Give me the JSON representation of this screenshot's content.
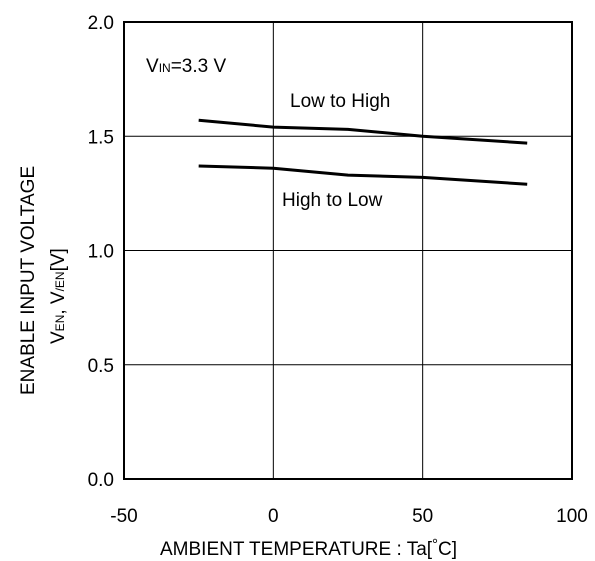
{
  "chart_data": {
    "type": "line",
    "xlabel_main": "AMBIENT TEMPERATURE : Ta[",
    "xlabel_unit_deg": "°",
    "xlabel_unit_c": "C",
    "xlabel_close": "]",
    "ylabel_line1": "ENABLE INPUT VOLTAGE",
    "ylabel_line2": {
      "v1": "V",
      "sub1": "EN",
      "sep": ", V",
      "sub2": "/EN",
      "unit": "[V]"
    },
    "xlim": [
      -50,
      100
    ],
    "ylim": [
      0.0,
      2.0
    ],
    "xticks": [
      "-50",
      "0",
      "50",
      "100"
    ],
    "yticks": [
      "0.0",
      "0.5",
      "1.0",
      "1.5",
      "2.0"
    ],
    "xtick_values": [
      -50,
      0,
      50,
      100
    ],
    "ytick_values": [
      0.0,
      0.5,
      1.0,
      1.5,
      2.0
    ],
    "grid": true,
    "condition": {
      "v": "V",
      "sub": "IN",
      "rest": "=3.3 V"
    },
    "series": [
      {
        "name": "Low to High",
        "x": [
          -25,
          0,
          25,
          50,
          85
        ],
        "y": [
          1.57,
          1.54,
          1.53,
          1.5,
          1.47
        ]
      },
      {
        "name": "High to Low",
        "x": [
          -25,
          0,
          25,
          50,
          85
        ],
        "y": [
          1.37,
          1.36,
          1.33,
          1.32,
          1.29
        ]
      }
    ],
    "colors": {
      "line": "#000000",
      "grid": "#000000",
      "background": "#ffffff"
    }
  }
}
